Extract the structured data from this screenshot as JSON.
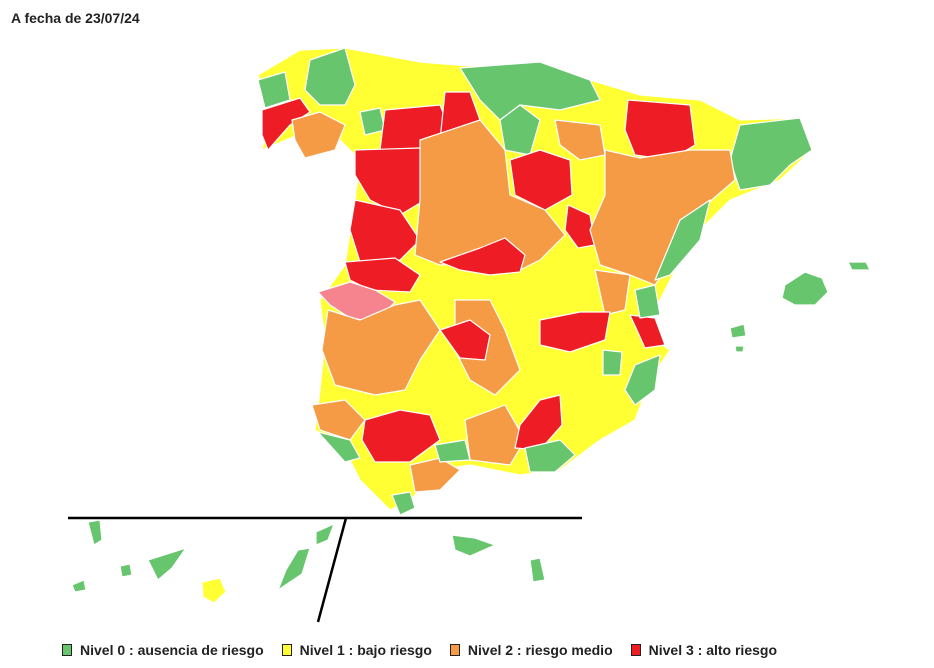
{
  "date_label": "A fecha de 23/07/24",
  "colors": {
    "level0": "#66c56d",
    "level1": "#ffff33",
    "level2": "#f59a45",
    "level3": "#ee1c25",
    "pink": "#f6848f",
    "divider": "#000000"
  },
  "legend": [
    {
      "label": "Nivel 0 : ausencia de riesgo",
      "color": "#66c56d"
    },
    {
      "label": "Nivel 1 : bajo riesgo",
      "color": "#ffff33"
    },
    {
      "label": "Nivel 2 : riesgo medio",
      "color": "#f59a45"
    },
    {
      "label": "Nivel 3 : alto riesgo",
      "color": "#ee1c25"
    }
  ]
}
